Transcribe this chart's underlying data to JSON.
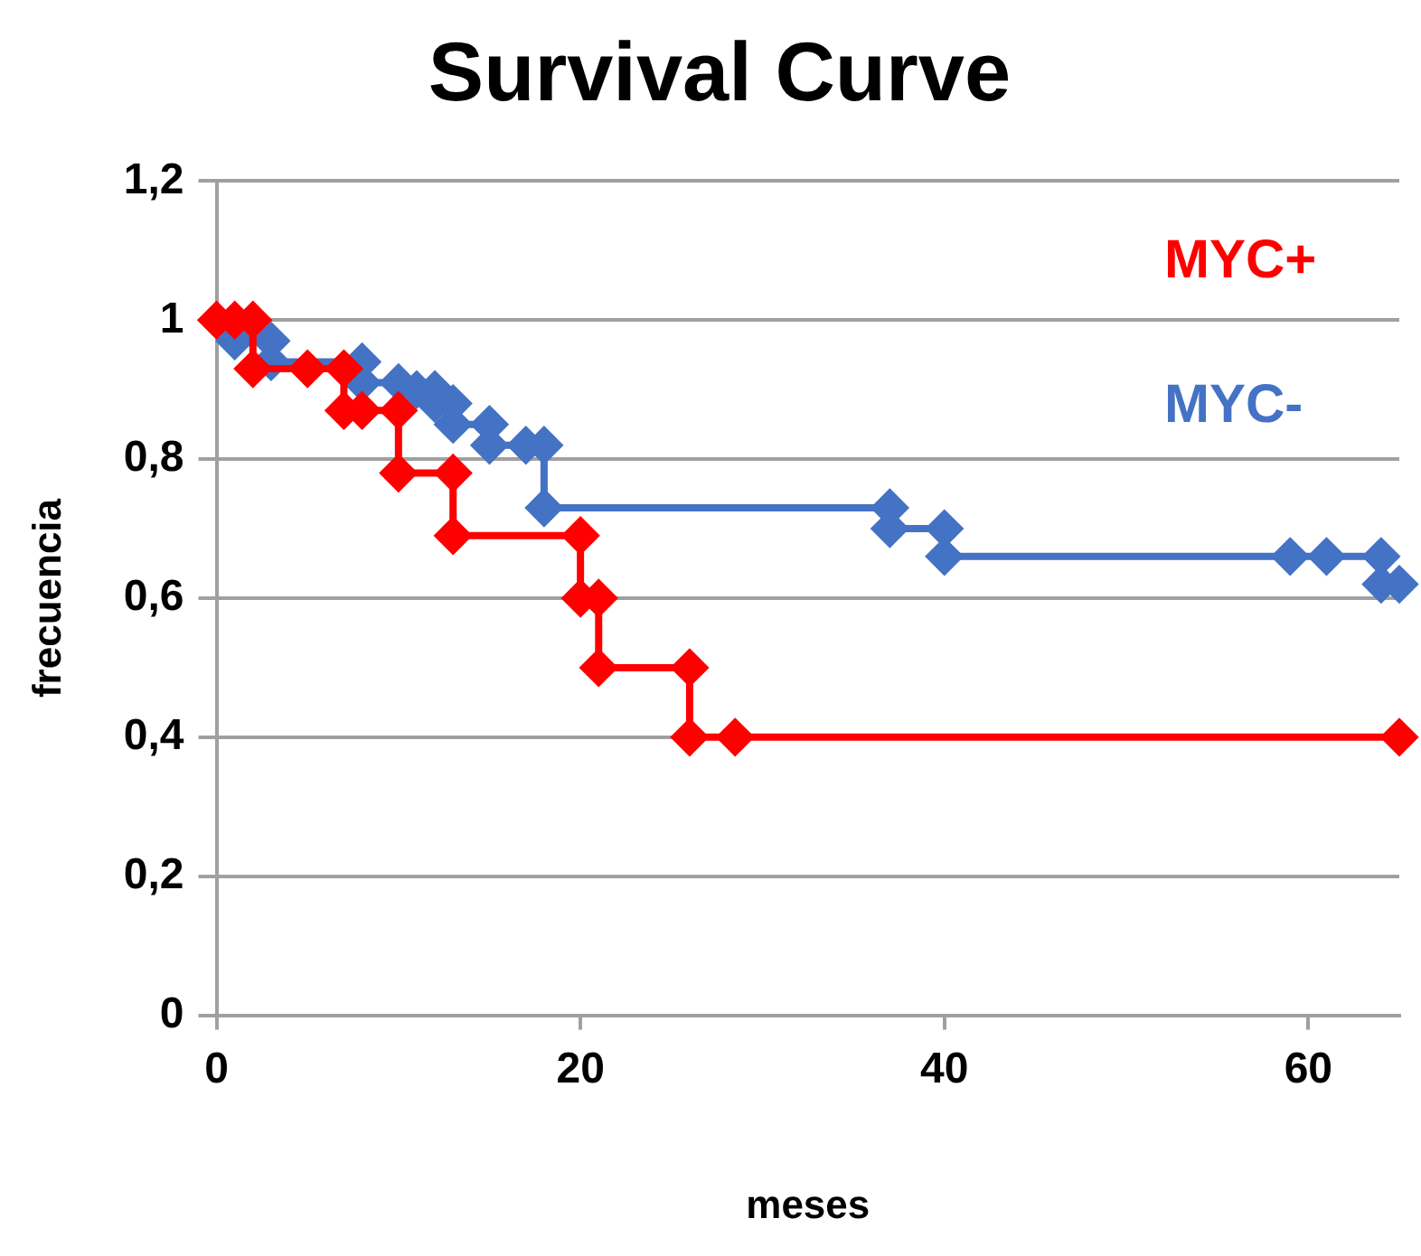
{
  "chart_data": {
    "type": "line",
    "title": "Survival Curve",
    "xlabel": "meses",
    "ylabel": "frecuencia",
    "xlim": [
      0,
      65
    ],
    "xticks": [
      0,
      20,
      40,
      60
    ],
    "ylim": [
      0,
      1.2
    ],
    "yticks": [
      0,
      {
        "value": 0.2,
        "label": "0,2"
      },
      {
        "value": 0.4,
        "label": "0,4"
      },
      {
        "value": 0.6,
        "label": "0,6"
      },
      {
        "value": 0.8,
        "label": "0,8"
      },
      1,
      {
        "value": 1.2,
        "label": "1,2"
      }
    ],
    "grid": "y",
    "marker": "diamond",
    "line_style": "solid",
    "legend": false,
    "series": [
      {
        "name": "MYC+",
        "color": "#ff0000",
        "x": [
          0,
          1,
          2,
          2,
          5,
          7,
          7,
          8,
          10,
          10,
          13,
          13,
          20,
          20,
          21,
          21,
          26,
          26,
          28.5,
          65
        ],
        "values": [
          1,
          1,
          1,
          0.93,
          0.93,
          0.93,
          0.87,
          0.87,
          0.87,
          0.78,
          0.78,
          0.69,
          0.69,
          0.6,
          0.6,
          0.5,
          0.5,
          0.4,
          0.4,
          0.4
        ]
      },
      {
        "name": "MYC-",
        "color": "#4472c4",
        "x": [
          1,
          3,
          3,
          8,
          8,
          10,
          11,
          12,
          12,
          13,
          13,
          15,
          15,
          17,
          18,
          18,
          37,
          37,
          40,
          40,
          59,
          61,
          64,
          64,
          65
        ],
        "values": [
          0.97,
          0.97,
          0.94,
          0.94,
          0.91,
          0.91,
          0.9,
          0.9,
          0.88,
          0.88,
          0.85,
          0.85,
          0.82,
          0.82,
          0.82,
          0.73,
          0.73,
          0.7,
          0.7,
          0.66,
          0.66,
          0.66,
          0.66,
          0.62,
          0.62
        ]
      }
    ]
  }
}
